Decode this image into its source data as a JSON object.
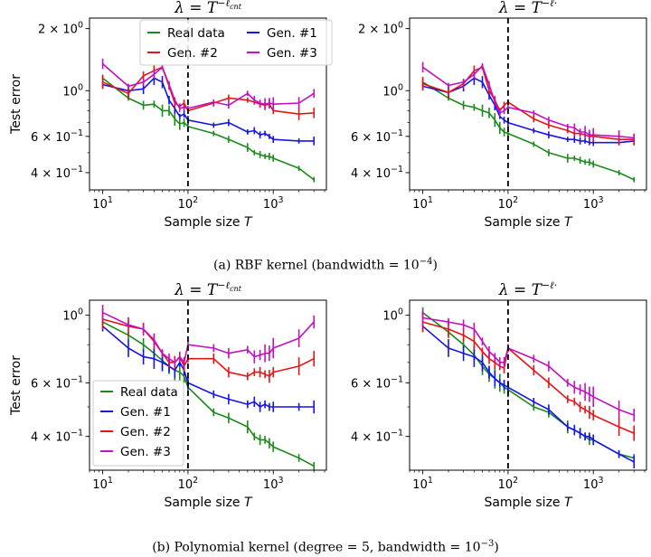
{
  "captions": [
    {
      "prefix": "(a) RBF kernel (bandwidth = 10",
      "exp": "−4",
      "suffix": ")"
    },
    {
      "prefix": "(b) Polynomial kernel (degree = 5, bandwidth = 10",
      "exp": "−3",
      "suffix": ")"
    }
  ],
  "colors": {
    "Real data": "#1a8a1a",
    "Gen. #1": "#1515e6",
    "Gen. #2": "#e61515",
    "Gen. #3": "#c010c0"
  },
  "chart_data": [
    {
      "type": "line",
      "panel": "a-left",
      "title": "λ = T^(−ℓ_cnt)",
      "xscale": "log",
      "yscale": "log",
      "xlabel": "Sample size T",
      "ylabel": "Test error",
      "xlim": [
        7,
        4200
      ],
      "ylim": [
        0.33,
        2.25
      ],
      "xticks": [
        "10^1",
        "10^2",
        "10^3"
      ],
      "yticks": [
        "2 × 10^0",
        "10^0",
        "6 × 10^-1",
        "4 × 10^-1"
      ],
      "vline_x": 100,
      "legend": {
        "placement": "top-center",
        "columns": 2
      },
      "series": [
        {
          "name": "Real data",
          "x": [
            10,
            20,
            30,
            40,
            50,
            60,
            70,
            80,
            90,
            100,
            200,
            300,
            500,
            600,
            700,
            800,
            900,
            1000,
            2000,
            3000
          ],
          "y": [
            1.15,
            0.92,
            0.85,
            0.86,
            0.8,
            0.8,
            0.73,
            0.69,
            0.7,
            0.67,
            0.62,
            0.58,
            0.53,
            0.5,
            0.49,
            0.48,
            0.48,
            0.47,
            0.42,
            0.37
          ]
        },
        {
          "name": "Gen. #1",
          "x": [
            10,
            20,
            30,
            40,
            50,
            60,
            70,
            80,
            90,
            100,
            200,
            300,
            500,
            600,
            700,
            800,
            900,
            1000,
            2000,
            3000
          ],
          "y": [
            1.07,
            1.0,
            1.02,
            1.15,
            1.1,
            0.9,
            0.82,
            0.75,
            0.77,
            0.72,
            0.68,
            0.7,
            0.63,
            0.64,
            0.61,
            0.62,
            0.6,
            0.58,
            0.57,
            0.57
          ]
        },
        {
          "name": "Gen. #2",
          "x": [
            10,
            20,
            30,
            40,
            50,
            60,
            70,
            80,
            90,
            100,
            200,
            300,
            500,
            600,
            700,
            800,
            900,
            1000,
            2000,
            3000
          ],
          "y": [
            1.1,
            0.97,
            1.18,
            1.25,
            1.3,
            1.05,
            0.87,
            0.84,
            0.87,
            0.8,
            0.87,
            0.92,
            0.9,
            0.88,
            0.86,
            0.85,
            0.86,
            0.8,
            0.77,
            0.78
          ]
        },
        {
          "name": "Gen. #3",
          "x": [
            10,
            20,
            30,
            40,
            50,
            60,
            70,
            80,
            90,
            100,
            200,
            300,
            500,
            600,
            700,
            800,
            900,
            1000,
            2000,
            3000
          ],
          "y": [
            1.35,
            1.05,
            1.1,
            1.2,
            1.3,
            1.07,
            0.9,
            0.82,
            0.83,
            0.82,
            0.88,
            0.85,
            0.97,
            0.9,
            0.87,
            0.86,
            0.87,
            0.86,
            0.87,
            0.97
          ]
        }
      ]
    },
    {
      "type": "line",
      "panel": "a-right",
      "title": "λ = T^(−ℓ*)",
      "xscale": "log",
      "yscale": "log",
      "xlabel": "Sample size T",
      "xlim": [
        7,
        4200
      ],
      "ylim": [
        0.33,
        2.25
      ],
      "xticks": [
        "10^1",
        "10^2",
        "10^3"
      ],
      "yticks": [
        "2 × 10^0",
        "10^0",
        "6 × 10^-1",
        "4 × 10^-1"
      ],
      "vline_x": 100,
      "series": [
        {
          "name": "Real data",
          "x": [
            10,
            20,
            30,
            40,
            50,
            60,
            70,
            80,
            90,
            100,
            200,
            300,
            500,
            600,
            700,
            800,
            900,
            1000,
            2000,
            3000
          ],
          "y": [
            1.1,
            0.92,
            0.85,
            0.83,
            0.8,
            0.78,
            0.72,
            0.66,
            0.63,
            0.62,
            0.55,
            0.5,
            0.47,
            0.47,
            0.46,
            0.45,
            0.45,
            0.44,
            0.4,
            0.37
          ]
        },
        {
          "name": "Gen. #1",
          "x": [
            10,
            20,
            30,
            40,
            50,
            60,
            70,
            80,
            90,
            100,
            200,
            300,
            500,
            600,
            700,
            800,
            900,
            1000,
            2000,
            3000
          ],
          "y": [
            1.05,
            0.98,
            1.05,
            1.15,
            1.1,
            0.95,
            0.85,
            0.75,
            0.72,
            0.7,
            0.64,
            0.61,
            0.58,
            0.58,
            0.57,
            0.57,
            0.56,
            0.56,
            0.56,
            0.57
          ]
        },
        {
          "name": "Gen. #2",
          "x": [
            10,
            20,
            30,
            40,
            50,
            60,
            70,
            80,
            90,
            100,
            200,
            300,
            500,
            600,
            700,
            800,
            900,
            1000,
            2000,
            3000
          ],
          "y": [
            1.08,
            0.98,
            1.08,
            1.25,
            1.3,
            1.0,
            0.9,
            0.8,
            0.85,
            0.88,
            0.73,
            0.68,
            0.64,
            0.62,
            0.62,
            0.61,
            0.6,
            0.6,
            0.58,
            0.58
          ]
        },
        {
          "name": "Gen. #3",
          "x": [
            10,
            20,
            30,
            40,
            50,
            60,
            70,
            80,
            90,
            100,
            200,
            300,
            500,
            600,
            700,
            800,
            900,
            1000,
            2000,
            3000
          ],
          "y": [
            1.3,
            1.06,
            1.1,
            1.2,
            1.32,
            1.07,
            0.88,
            0.78,
            0.8,
            0.83,
            0.78,
            0.72,
            0.67,
            0.66,
            0.63,
            0.63,
            0.61,
            0.61,
            0.6,
            0.59
          ]
        }
      ]
    },
    {
      "type": "line",
      "panel": "b-left",
      "title": "λ = T^(−ℓ_cnt)",
      "xscale": "log",
      "yscale": "log",
      "xlabel": "Sample size T",
      "ylabel": "Test error",
      "xlim": [
        7,
        4200
      ],
      "ylim": [
        0.31,
        1.12
      ],
      "xticks": [
        "10^1",
        "10^2",
        "10^3"
      ],
      "yticks": [
        "10^0",
        "6 × 10^-1",
        "4 × 10^-1"
      ],
      "vline_x": 100,
      "legend": {
        "placement": "bottom-left",
        "columns": 1
      },
      "series": [
        {
          "name": "Real data",
          "x": [
            10,
            20,
            30,
            40,
            50,
            60,
            70,
            80,
            90,
            100,
            200,
            300,
            500,
            600,
            700,
            800,
            900,
            1000,
            2000,
            3000
          ],
          "y": [
            0.95,
            0.86,
            0.8,
            0.75,
            0.71,
            0.68,
            0.66,
            0.65,
            0.63,
            0.58,
            0.48,
            0.46,
            0.43,
            0.4,
            0.39,
            0.39,
            0.38,
            0.37,
            0.34,
            0.32
          ]
        },
        {
          "name": "Gen. #1",
          "x": [
            10,
            20,
            30,
            40,
            50,
            60,
            70,
            80,
            90,
            100,
            200,
            300,
            500,
            600,
            700,
            800,
            900,
            1000,
            2000,
            3000
          ],
          "y": [
            0.92,
            0.78,
            0.73,
            0.72,
            0.7,
            0.68,
            0.66,
            0.7,
            0.66,
            0.6,
            0.55,
            0.53,
            0.51,
            0.52,
            0.5,
            0.51,
            0.5,
            0.5,
            0.5,
            0.5
          ]
        },
        {
          "name": "Gen. #2",
          "x": [
            10,
            20,
            30,
            40,
            50,
            60,
            70,
            80,
            90,
            100,
            200,
            300,
            500,
            600,
            700,
            800,
            900,
            1000,
            2000,
            3000
          ],
          "y": [
            0.97,
            0.92,
            0.9,
            0.82,
            0.75,
            0.7,
            0.7,
            0.73,
            0.68,
            0.72,
            0.72,
            0.65,
            0.63,
            0.65,
            0.65,
            0.64,
            0.63,
            0.65,
            0.68,
            0.72
          ]
        },
        {
          "name": "Gen. #3",
          "x": [
            10,
            20,
            30,
            40,
            50,
            60,
            70,
            80,
            90,
            100,
            200,
            300,
            500,
            600,
            700,
            800,
            900,
            1000,
            2000,
            3000
          ],
          "y": [
            1.02,
            0.93,
            0.9,
            0.83,
            0.75,
            0.72,
            0.7,
            0.73,
            0.7,
            0.8,
            0.78,
            0.75,
            0.77,
            0.73,
            0.74,
            0.75,
            0.75,
            0.78,
            0.84,
            0.95
          ]
        }
      ]
    },
    {
      "type": "line",
      "panel": "b-right",
      "title": "λ = T^(−ℓ*)",
      "xscale": "log",
      "yscale": "log",
      "xlabel": "Sample size T",
      "xlim": [
        7,
        4200
      ],
      "ylim": [
        0.31,
        1.12
      ],
      "xticks": [
        "10^1",
        "10^2",
        "10^3"
      ],
      "yticks": [
        "10^0",
        "6 × 10^-1",
        "4 × 10^-1"
      ],
      "vline_x": 100,
      "series": [
        {
          "name": "Real data",
          "x": [
            10,
            20,
            30,
            40,
            50,
            60,
            70,
            80,
            90,
            100,
            200,
            300,
            500,
            600,
            700,
            800,
            900,
            1000,
            2000,
            3000
          ],
          "y": [
            1.02,
            0.88,
            0.8,
            0.74,
            0.68,
            0.64,
            0.62,
            0.6,
            0.58,
            0.57,
            0.5,
            0.48,
            0.43,
            0.42,
            0.41,
            0.4,
            0.39,
            0.39,
            0.35,
            0.34
          ]
        },
        {
          "name": "Gen. #1",
          "x": [
            10,
            20,
            30,
            40,
            50,
            60,
            70,
            80,
            90,
            100,
            200,
            300,
            500,
            600,
            700,
            800,
            900,
            1000,
            2000,
            3000
          ],
          "y": [
            0.92,
            0.78,
            0.75,
            0.73,
            0.7,
            0.65,
            0.62,
            0.6,
            0.59,
            0.58,
            0.52,
            0.49,
            0.43,
            0.42,
            0.41,
            0.4,
            0.4,
            0.39,
            0.35,
            0.33
          ]
        },
        {
          "name": "Gen. #2",
          "x": [
            10,
            20,
            30,
            40,
            50,
            60,
            70,
            80,
            90,
            100,
            200,
            300,
            500,
            600,
            700,
            800,
            900,
            1000,
            2000,
            3000
          ],
          "y": [
            0.95,
            0.9,
            0.86,
            0.82,
            0.76,
            0.72,
            0.7,
            0.68,
            0.67,
            0.78,
            0.66,
            0.6,
            0.53,
            0.52,
            0.5,
            0.49,
            0.48,
            0.47,
            0.43,
            0.41
          ]
        },
        {
          "name": "Gen. #3",
          "x": [
            10,
            20,
            30,
            40,
            50,
            60,
            70,
            80,
            90,
            100,
            200,
            300,
            500,
            600,
            700,
            800,
            900,
            1000,
            2000,
            3000
          ],
          "y": [
            0.98,
            0.95,
            0.93,
            0.9,
            0.82,
            0.76,
            0.73,
            0.7,
            0.7,
            0.78,
            0.72,
            0.68,
            0.6,
            0.58,
            0.57,
            0.56,
            0.55,
            0.54,
            0.49,
            0.47
          ]
        }
      ]
    }
  ]
}
